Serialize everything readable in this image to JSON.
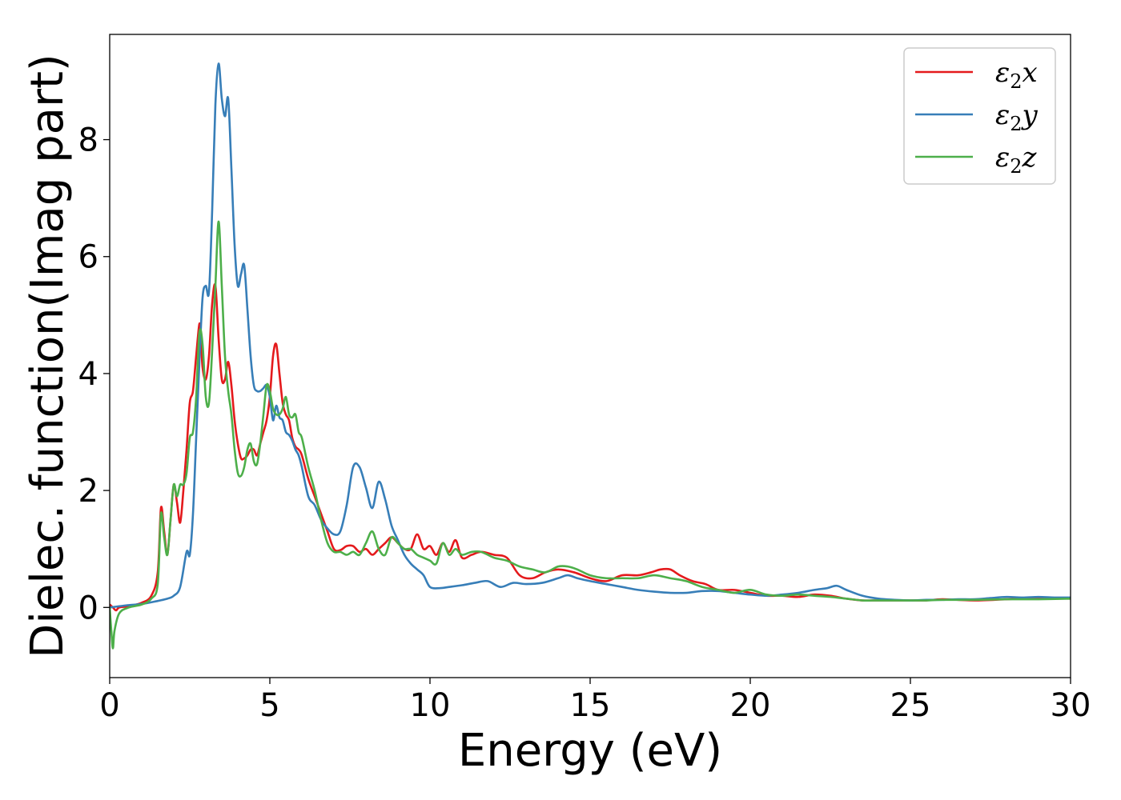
{
  "chart_data": {
    "type": "line",
    "title": "",
    "xlabel": "Energy (eV)",
    "ylabel": "Dielec. function(Imag part)",
    "xlim": [
      0,
      30
    ],
    "ylim": [
      -1.2,
      9.8
    ],
    "xticks": [
      0,
      5,
      10,
      15,
      20,
      25,
      30
    ],
    "yticks": [
      0,
      2,
      4,
      6,
      8
    ],
    "grid": false,
    "legend_position": "top-right",
    "series": [
      {
        "name": "ε2x",
        "legend_base": "ε",
        "legend_sub": "2",
        "legend_var": "x",
        "color": "#e41a1c",
        "x": [
          0,
          0.1,
          0.2,
          0.3,
          0.6,
          1.0,
          1.3,
          1.5,
          1.6,
          1.7,
          1.8,
          1.9,
          2.0,
          2.1,
          2.2,
          2.3,
          2.4,
          2.5,
          2.6,
          2.7,
          2.8,
          2.85,
          2.9,
          3.0,
          3.1,
          3.2,
          3.3,
          3.4,
          3.5,
          3.6,
          3.7,
          3.8,
          3.9,
          4.0,
          4.1,
          4.2,
          4.3,
          4.4,
          4.5,
          4.6,
          4.7,
          4.8,
          4.9,
          5.0,
          5.1,
          5.2,
          5.3,
          5.4,
          5.5,
          5.6,
          5.7,
          5.8,
          5.9,
          6.0,
          6.2,
          6.4,
          6.6,
          6.8,
          7.0,
          7.2,
          7.4,
          7.6,
          7.8,
          8.0,
          8.2,
          8.4,
          8.6,
          8.8,
          9.0,
          9.2,
          9.4,
          9.6,
          9.8,
          10.0,
          10.2,
          10.4,
          10.6,
          10.8,
          11.0,
          11.3,
          11.6,
          12.0,
          12.4,
          12.8,
          13.2,
          13.6,
          14.0,
          14.5,
          15.0,
          15.5,
          16.0,
          16.5,
          16.9,
          17.2,
          17.5,
          17.8,
          18.2,
          18.6,
          19.0,
          19.5,
          20.0,
          20.5,
          21.0,
          21.5,
          22.0,
          22.5,
          23.0,
          23.5,
          24.0,
          24.5,
          25.0,
          25.5,
          26.0,
          27.0,
          28.0,
          29.0,
          30.0
        ],
        "y": [
          0.05,
          0.0,
          -0.05,
          0.0,
          0.02,
          0.08,
          0.2,
          0.6,
          1.7,
          1.3,
          0.9,
          1.5,
          2.1,
          1.8,
          1.45,
          2.0,
          2.7,
          3.5,
          3.7,
          4.3,
          4.85,
          4.6,
          4.1,
          3.9,
          4.3,
          5.2,
          5.5,
          4.6,
          3.9,
          3.9,
          4.2,
          3.8,
          3.2,
          2.8,
          2.55,
          2.55,
          2.6,
          2.7,
          2.7,
          2.6,
          2.8,
          3.0,
          3.2,
          3.6,
          4.3,
          4.5,
          4.0,
          3.5,
          3.3,
          3.2,
          2.9,
          2.75,
          2.7,
          2.6,
          2.2,
          1.9,
          1.6,
          1.3,
          1.0,
          0.98,
          1.05,
          1.05,
          0.95,
          1.0,
          0.9,
          1.0,
          1.1,
          1.2,
          1.1,
          1.0,
          1.0,
          1.25,
          1.0,
          1.05,
          0.9,
          1.1,
          0.95,
          1.15,
          0.85,
          0.9,
          0.95,
          0.9,
          0.85,
          0.55,
          0.5,
          0.6,
          0.65,
          0.6,
          0.5,
          0.45,
          0.55,
          0.55,
          0.6,
          0.65,
          0.65,
          0.55,
          0.45,
          0.4,
          0.3,
          0.3,
          0.25,
          0.2,
          0.2,
          0.18,
          0.22,
          0.2,
          0.15,
          0.12,
          0.12,
          0.12,
          0.12,
          0.12,
          0.14,
          0.12,
          0.14,
          0.16,
          0.15
        ]
      },
      {
        "name": "ε2y",
        "legend_base": "ε",
        "legend_sub": "2",
        "legend_var": "y",
        "color": "#377eb8",
        "x": [
          0,
          0.3,
          0.6,
          1.0,
          1.4,
          1.8,
          2.0,
          2.2,
          2.4,
          2.5,
          2.6,
          2.7,
          2.8,
          2.9,
          3.0,
          3.1,
          3.2,
          3.3,
          3.4,
          3.5,
          3.6,
          3.7,
          3.8,
          3.9,
          4.0,
          4.1,
          4.2,
          4.3,
          4.4,
          4.5,
          4.6,
          4.7,
          4.8,
          4.9,
          5.0,
          5.1,
          5.2,
          5.3,
          5.4,
          5.5,
          5.6,
          5.7,
          5.8,
          5.9,
          6.0,
          6.2,
          6.4,
          6.6,
          6.8,
          7.0,
          7.2,
          7.4,
          7.6,
          7.8,
          8.0,
          8.2,
          8.4,
          8.6,
          8.8,
          9.0,
          9.2,
          9.4,
          9.6,
          9.8,
          10.0,
          10.3,
          10.6,
          11.0,
          11.4,
          11.8,
          12.2,
          12.6,
          13.0,
          13.5,
          14.0,
          14.3,
          14.6,
          15.0,
          15.5,
          16.0,
          16.5,
          17.0,
          17.5,
          18.0,
          18.5,
          19.0,
          19.5,
          20.0,
          20.5,
          21.0,
          21.5,
          22.0,
          22.4,
          22.7,
          23.0,
          23.5,
          24.0,
          24.5,
          25.0,
          25.5,
          26.0,
          26.5,
          27.0,
          27.5,
          28.0,
          28.5,
          29.0,
          29.5,
          30.0
        ],
        "y": [
          0.0,
          0.02,
          0.04,
          0.06,
          0.1,
          0.15,
          0.2,
          0.35,
          0.95,
          0.9,
          1.6,
          2.9,
          4.2,
          5.3,
          5.5,
          5.4,
          6.8,
          8.6,
          9.3,
          8.7,
          8.4,
          8.7,
          7.5,
          6.2,
          5.5,
          5.7,
          5.85,
          5.1,
          4.3,
          3.8,
          3.7,
          3.7,
          3.75,
          3.8,
          3.6,
          3.2,
          3.45,
          3.25,
          3.2,
          3.0,
          2.95,
          2.85,
          2.7,
          2.6,
          2.4,
          1.9,
          1.75,
          1.5,
          1.35,
          1.25,
          1.3,
          1.75,
          2.4,
          2.4,
          2.05,
          1.7,
          2.15,
          1.85,
          1.4,
          1.15,
          0.9,
          0.75,
          0.65,
          0.55,
          0.35,
          0.33,
          0.35,
          0.38,
          0.42,
          0.45,
          0.35,
          0.42,
          0.4,
          0.42,
          0.5,
          0.55,
          0.5,
          0.45,
          0.4,
          0.35,
          0.3,
          0.27,
          0.25,
          0.25,
          0.28,
          0.28,
          0.25,
          0.22,
          0.2,
          0.22,
          0.25,
          0.3,
          0.33,
          0.37,
          0.3,
          0.2,
          0.15,
          0.13,
          0.12,
          0.13,
          0.13,
          0.14,
          0.14,
          0.16,
          0.18,
          0.17,
          0.18,
          0.17,
          0.17
        ]
      },
      {
        "name": "ε2z",
        "legend_base": "ε",
        "legend_sub": "2",
        "legend_var": "z",
        "color": "#4daf4a",
        "x": [
          0,
          0.05,
          0.1,
          0.15,
          0.3,
          0.6,
          1.0,
          1.3,
          1.5,
          1.6,
          1.7,
          1.8,
          1.9,
          2.0,
          2.1,
          2.2,
          2.3,
          2.4,
          2.5,
          2.6,
          2.7,
          2.8,
          2.9,
          3.0,
          3.1,
          3.2,
          3.3,
          3.4,
          3.5,
          3.6,
          3.7,
          3.8,
          3.9,
          4.0,
          4.1,
          4.2,
          4.3,
          4.4,
          4.5,
          4.6,
          4.7,
          4.8,
          4.9,
          5.0,
          5.1,
          5.2,
          5.3,
          5.4,
          5.5,
          5.6,
          5.7,
          5.8,
          5.9,
          6.0,
          6.2,
          6.4,
          6.6,
          6.8,
          7.0,
          7.2,
          7.4,
          7.6,
          7.8,
          8.0,
          8.2,
          8.4,
          8.6,
          8.8,
          9.0,
          9.2,
          9.4,
          9.6,
          9.8,
          10.0,
          10.2,
          10.4,
          10.6,
          10.8,
          11.0,
          11.3,
          11.6,
          12.0,
          12.4,
          12.8,
          13.2,
          13.6,
          14.0,
          14.3,
          14.6,
          15.0,
          15.5,
          16.0,
          16.5,
          17.0,
          17.5,
          18.0,
          18.5,
          19.0,
          19.5,
          20.0,
          20.5,
          21.0,
          21.5,
          22.0,
          22.5,
          23.0,
          23.5,
          24.0,
          24.5,
          25.0,
          25.5,
          26.0,
          27.0,
          28.0,
          29.0,
          30.0
        ],
        "y": [
          0.0,
          -0.4,
          -0.7,
          -0.4,
          -0.1,
          0.0,
          0.05,
          0.15,
          0.4,
          1.6,
          1.2,
          0.9,
          1.5,
          2.1,
          1.9,
          2.1,
          2.1,
          2.3,
          2.9,
          3.0,
          3.6,
          4.7,
          4.5,
          3.6,
          3.5,
          4.4,
          5.5,
          6.6,
          5.5,
          4.3,
          3.7,
          3.3,
          2.7,
          2.3,
          2.25,
          2.4,
          2.7,
          2.8,
          2.5,
          2.45,
          2.8,
          3.3,
          3.8,
          3.7,
          3.4,
          3.3,
          3.3,
          3.4,
          3.6,
          3.3,
          3.25,
          3.3,
          3.0,
          2.9,
          2.4,
          2.0,
          1.5,
          1.1,
          0.95,
          0.95,
          0.9,
          0.95,
          0.9,
          1.1,
          1.3,
          1.0,
          0.9,
          1.2,
          1.1,
          1.0,
          1.0,
          0.9,
          0.85,
          0.8,
          0.75,
          1.1,
          0.9,
          1.0,
          0.9,
          0.95,
          0.95,
          0.85,
          0.8,
          0.7,
          0.65,
          0.6,
          0.7,
          0.7,
          0.65,
          0.55,
          0.5,
          0.5,
          0.5,
          0.55,
          0.5,
          0.45,
          0.35,
          0.3,
          0.25,
          0.3,
          0.22,
          0.2,
          0.22,
          0.2,
          0.18,
          0.15,
          0.12,
          0.12,
          0.12,
          0.12,
          0.12,
          0.13,
          0.13,
          0.14,
          0.14,
          0.15
        ]
      }
    ]
  }
}
